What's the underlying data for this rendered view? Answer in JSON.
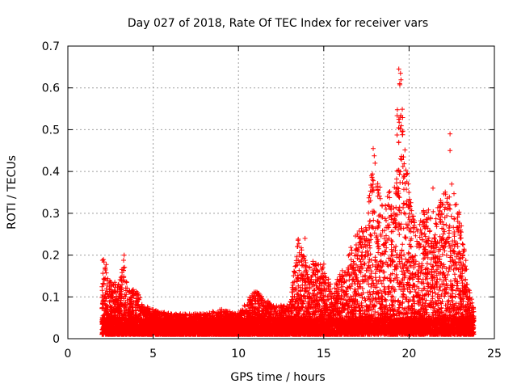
{
  "chart_data": {
    "type": "scatter",
    "title": "Day 027 of 2018, Rate Of TEC Index for receiver vars",
    "xlabel": "GPS time / hours",
    "ylabel": "ROTI / TECUs",
    "xlim": [
      0,
      25
    ],
    "ylim": [
      0,
      0.7
    ],
    "grid": true,
    "marker": "+",
    "color": "#ff0000",
    "xticks": [
      0,
      5,
      10,
      15,
      20,
      25
    ],
    "yticks": [
      0,
      0.1,
      0.2,
      0.3,
      0.4,
      0.5,
      0.6,
      0.7
    ],
    "xtick_labels": [
      "0",
      "5",
      "10",
      "15",
      "20",
      "25"
    ],
    "ytick_labels": [
      "0",
      "0.1",
      "0.2",
      "0.3",
      "0.4",
      "0.5",
      "0.6",
      "0.7"
    ],
    "envelope": {
      "description": "approximate upper envelope of ROTI values over GPS hours",
      "x": [
        2.0,
        2.2,
        2.5,
        3.0,
        3.3,
        3.5,
        4.0,
        4.5,
        5.0,
        6.0,
        7.0,
        8.0,
        9.0,
        10.0,
        11.0,
        12.0,
        13.0,
        13.5,
        14.0,
        14.5,
        15.0,
        15.5,
        16.0,
        16.5,
        17.0,
        17.5,
        18.0,
        18.5,
        19.0,
        19.5,
        20.0,
        20.5,
        21.0,
        21.5,
        22.0,
        22.5,
        23.0,
        23.5,
        23.8
      ],
      "y": [
        0.2,
        0.19,
        0.14,
        0.13,
        0.2,
        0.12,
        0.12,
        0.08,
        0.07,
        0.06,
        0.06,
        0.06,
        0.07,
        0.06,
        0.12,
        0.08,
        0.08,
        0.24,
        0.18,
        0.19,
        0.18,
        0.12,
        0.16,
        0.21,
        0.26,
        0.3,
        0.45,
        0.3,
        0.4,
        0.64,
        0.35,
        0.26,
        0.33,
        0.3,
        0.35,
        0.37,
        0.3,
        0.13,
        0.07
      ]
    },
    "outliers": [
      {
        "x": 3.3,
        "y": 0.2
      },
      {
        "x": 13.9,
        "y": 0.24
      },
      {
        "x": 17.8,
        "y": 0.39
      },
      {
        "x": 17.9,
        "y": 0.455
      },
      {
        "x": 19.4,
        "y": 0.645
      },
      {
        "x": 19.5,
        "y": 0.635
      },
      {
        "x": 19.45,
        "y": 0.61
      },
      {
        "x": 19.5,
        "y": 0.53
      },
      {
        "x": 19.4,
        "y": 0.47
      },
      {
        "x": 22.4,
        "y": 0.49
      },
      {
        "x": 22.4,
        "y": 0.45
      },
      {
        "x": 22.5,
        "y": 0.37
      },
      {
        "x": 21.4,
        "y": 0.36
      }
    ],
    "x_start": 2.0,
    "x_end": 23.8
  }
}
